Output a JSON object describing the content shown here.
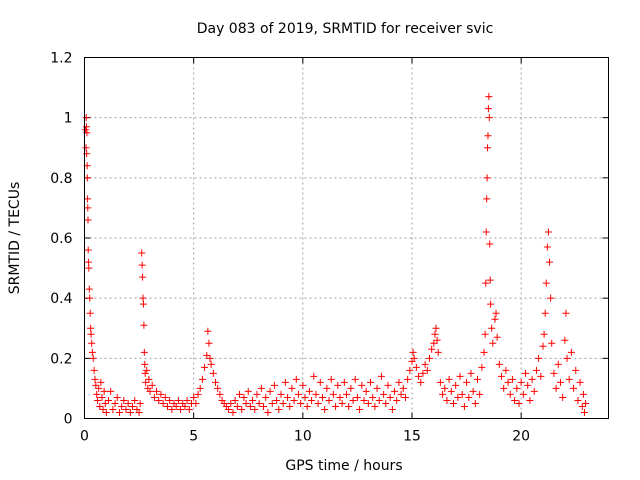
{
  "chart_data": {
    "type": "scatter",
    "title": "Day 083 of 2019, SRMTID for receiver svic",
    "xlabel": "GPS time / hours",
    "ylabel": "SRMTID / TECUs",
    "xlim": [
      0,
      24
    ],
    "ylim": [
      0,
      1.2
    ],
    "xticks": [
      0,
      5,
      10,
      15,
      20
    ],
    "yticks": [
      0,
      0.2,
      0.4,
      0.6,
      0.8,
      1,
      1.2
    ],
    "xtick_labels": [
      "0",
      "5",
      "10",
      "15",
      "20"
    ],
    "ytick_labels": [
      "0",
      "0.2",
      "0.4",
      "0.6",
      "0.8",
      "1",
      "1.2"
    ],
    "grid": true,
    "marker": "+",
    "color": "#ff0000",
    "series": [
      {
        "name": "SRMTID",
        "points": [
          [
            0.05,
            0.96
          ],
          [
            0.07,
            0.9
          ],
          [
            0.08,
            1.0
          ],
          [
            0.09,
            0.97
          ],
          [
            0.1,
            0.88
          ],
          [
            0.11,
            0.95
          ],
          [
            0.12,
            0.84
          ],
          [
            0.13,
            0.8
          ],
          [
            0.14,
            0.73
          ],
          [
            0.15,
            0.7
          ],
          [
            0.16,
            0.66
          ],
          [
            0.17,
            0.56
          ],
          [
            0.18,
            0.52
          ],
          [
            0.2,
            0.5
          ],
          [
            0.22,
            0.43
          ],
          [
            0.24,
            0.4
          ],
          [
            0.26,
            0.35
          ],
          [
            0.28,
            0.3
          ],
          [
            0.3,
            0.28
          ],
          [
            0.33,
            0.25
          ],
          [
            0.36,
            0.22
          ],
          [
            0.4,
            0.2
          ],
          [
            0.44,
            0.16
          ],
          [
            0.48,
            0.13
          ],
          [
            0.52,
            0.11
          ],
          [
            0.56,
            0.08
          ],
          [
            0.6,
            0.06
          ],
          [
            0.65,
            0.1
          ],
          [
            0.7,
            0.04
          ],
          [
            0.75,
            0.12
          ],
          [
            0.8,
            0.07
          ],
          [
            0.85,
            0.03
          ],
          [
            0.9,
            0.09
          ],
          [
            0.95,
            0.05
          ],
          [
            1.0,
            0.02
          ],
          [
            1.1,
            0.06
          ],
          [
            1.2,
            0.09
          ],
          [
            1.3,
            0.03
          ],
          [
            1.4,
            0.05
          ],
          [
            1.5,
            0.07
          ],
          [
            1.6,
            0.02
          ],
          [
            1.7,
            0.04
          ],
          [
            1.8,
            0.06
          ],
          [
            1.9,
            0.03
          ],
          [
            2.0,
            0.05
          ],
          [
            2.1,
            0.02
          ],
          [
            2.2,
            0.04
          ],
          [
            2.3,
            0.06
          ],
          [
            2.4,
            0.03
          ],
          [
            2.5,
            0.02
          ],
          [
            2.55,
            0.05
          ],
          [
            2.62,
            0.55
          ],
          [
            2.64,
            0.51
          ],
          [
            2.66,
            0.47
          ],
          [
            2.68,
            0.4
          ],
          [
            2.7,
            0.38
          ],
          [
            2.72,
            0.31
          ],
          [
            2.74,
            0.22
          ],
          [
            2.76,
            0.18
          ],
          [
            2.78,
            0.15
          ],
          [
            2.8,
            0.12
          ],
          [
            2.85,
            0.16
          ],
          [
            2.9,
            0.1
          ],
          [
            2.95,
            0.13
          ],
          [
            3.0,
            0.09
          ],
          [
            3.1,
            0.11
          ],
          [
            3.2,
            0.07
          ],
          [
            3.3,
            0.09
          ],
          [
            3.4,
            0.06
          ],
          [
            3.5,
            0.08
          ],
          [
            3.6,
            0.05
          ],
          [
            3.7,
            0.07
          ],
          [
            3.8,
            0.04
          ],
          [
            3.9,
            0.06
          ],
          [
            4.0,
            0.03
          ],
          [
            4.1,
            0.05
          ],
          [
            4.2,
            0.04
          ],
          [
            4.3,
            0.06
          ],
          [
            4.4,
            0.03
          ],
          [
            4.5,
            0.05
          ],
          [
            4.6,
            0.04
          ],
          [
            4.7,
            0.06
          ],
          [
            4.8,
            0.03
          ],
          [
            4.9,
            0.05
          ],
          [
            5.0,
            0.07
          ],
          [
            5.1,
            0.05
          ],
          [
            5.2,
            0.08
          ],
          [
            5.3,
            0.1
          ],
          [
            5.4,
            0.13
          ],
          [
            5.5,
            0.17
          ],
          [
            5.6,
            0.21
          ],
          [
            5.65,
            0.29
          ],
          [
            5.7,
            0.25
          ],
          [
            5.75,
            0.2
          ],
          [
            5.8,
            0.18
          ],
          [
            5.9,
            0.15
          ],
          [
            6.0,
            0.12
          ],
          [
            6.1,
            0.1
          ],
          [
            6.2,
            0.08
          ],
          [
            6.3,
            0.06
          ],
          [
            6.4,
            0.05
          ],
          [
            6.5,
            0.04
          ],
          [
            6.6,
            0.03
          ],
          [
            6.7,
            0.05
          ],
          [
            6.8,
            0.02
          ],
          [
            6.9,
            0.06
          ],
          [
            7.0,
            0.04
          ],
          [
            7.1,
            0.08
          ],
          [
            7.2,
            0.03
          ],
          [
            7.3,
            0.07
          ],
          [
            7.4,
            0.05
          ],
          [
            7.5,
            0.09
          ],
          [
            7.6,
            0.04
          ],
          [
            7.7,
            0.06
          ],
          [
            7.8,
            0.03
          ],
          [
            7.9,
            0.08
          ],
          [
            8.0,
            0.05
          ],
          [
            8.1,
            0.1
          ],
          [
            8.2,
            0.04
          ],
          [
            8.3,
            0.07
          ],
          [
            8.4,
            0.02
          ],
          [
            8.5,
            0.09
          ],
          [
            8.6,
            0.05
          ],
          [
            8.7,
            0.11
          ],
          [
            8.8,
            0.06
          ],
          [
            8.9,
            0.03
          ],
          [
            9.0,
            0.08
          ],
          [
            9.1,
            0.05
          ],
          [
            9.2,
            0.12
          ],
          [
            9.3,
            0.07
          ],
          [
            9.4,
            0.04
          ],
          [
            9.5,
            0.1
          ],
          [
            9.6,
            0.06
          ],
          [
            9.7,
            0.13
          ],
          [
            9.8,
            0.08
          ],
          [
            9.9,
            0.05
          ],
          [
            10.0,
            0.11
          ],
          [
            10.1,
            0.07
          ],
          [
            10.2,
            0.04
          ],
          [
            10.3,
            0.09
          ],
          [
            10.4,
            0.06
          ],
          [
            10.5,
            0.14
          ],
          [
            10.6,
            0.08
          ],
          [
            10.7,
            0.05
          ],
          [
            10.8,
            0.12
          ],
          [
            10.9,
            0.07
          ],
          [
            11.0,
            0.03
          ],
          [
            11.1,
            0.1
          ],
          [
            11.2,
            0.06
          ],
          [
            11.3,
            0.13
          ],
          [
            11.4,
            0.08
          ],
          [
            11.5,
            0.04
          ],
          [
            11.6,
            0.11
          ],
          [
            11.7,
            0.07
          ],
          [
            11.8,
            0.05
          ],
          [
            11.9,
            0.12
          ],
          [
            12.0,
            0.08
          ],
          [
            12.1,
            0.04
          ],
          [
            12.2,
            0.1
          ],
          [
            12.3,
            0.06
          ],
          [
            12.4,
            0.13
          ],
          [
            12.5,
            0.07
          ],
          [
            12.6,
            0.03
          ],
          [
            12.7,
            0.11
          ],
          [
            12.8,
            0.06
          ],
          [
            12.9,
            0.09
          ],
          [
            13.0,
            0.05
          ],
          [
            13.1,
            0.12
          ],
          [
            13.2,
            0.07
          ],
          [
            13.3,
            0.04
          ],
          [
            13.4,
            0.1
          ],
          [
            13.5,
            0.06
          ],
          [
            13.6,
            0.14
          ],
          [
            13.7,
            0.08
          ],
          [
            13.8,
            0.05
          ],
          [
            13.9,
            0.11
          ],
          [
            14.0,
            0.07
          ],
          [
            14.1,
            0.03
          ],
          [
            14.2,
            0.09
          ],
          [
            14.3,
            0.06
          ],
          [
            14.4,
            0.12
          ],
          [
            14.5,
            0.08
          ],
          [
            14.6,
            0.1
          ],
          [
            14.7,
            0.07
          ],
          [
            14.8,
            0.13
          ],
          [
            14.9,
            0.16
          ],
          [
            15.0,
            0.19
          ],
          [
            15.05,
            0.22
          ],
          [
            15.1,
            0.2
          ],
          [
            15.2,
            0.17
          ],
          [
            15.3,
            0.14
          ],
          [
            15.4,
            0.12
          ],
          [
            15.5,
            0.15
          ],
          [
            15.6,
            0.18
          ],
          [
            15.7,
            0.16
          ],
          [
            15.8,
            0.2
          ],
          [
            15.9,
            0.23
          ],
          [
            16.0,
            0.25
          ],
          [
            16.05,
            0.28
          ],
          [
            16.1,
            0.3
          ],
          [
            16.15,
            0.26
          ],
          [
            16.2,
            0.22
          ],
          [
            16.3,
            0.12
          ],
          [
            16.4,
            0.08
          ],
          [
            16.5,
            0.1
          ],
          [
            16.6,
            0.06
          ],
          [
            16.7,
            0.13
          ],
          [
            16.8,
            0.09
          ],
          [
            16.9,
            0.05
          ],
          [
            17.0,
            0.11
          ],
          [
            17.1,
            0.07
          ],
          [
            17.2,
            0.14
          ],
          [
            17.3,
            0.08
          ],
          [
            17.4,
            0.04
          ],
          [
            17.5,
            0.12
          ],
          [
            17.6,
            0.07
          ],
          [
            17.7,
            0.15
          ],
          [
            17.8,
            0.09
          ],
          [
            17.9,
            0.05
          ],
          [
            18.0,
            0.13
          ],
          [
            18.1,
            0.08
          ],
          [
            18.2,
            0.17
          ],
          [
            18.3,
            0.22
          ],
          [
            18.35,
            0.28
          ],
          [
            18.38,
            0.45
          ],
          [
            18.4,
            0.62
          ],
          [
            18.42,
            0.73
          ],
          [
            18.44,
            0.8
          ],
          [
            18.46,
            0.9
          ],
          [
            18.48,
            0.94
          ],
          [
            18.5,
            1.03
          ],
          [
            18.52,
            1.07
          ],
          [
            18.54,
            1.0
          ],
          [
            18.56,
            0.58
          ],
          [
            18.58,
            0.46
          ],
          [
            18.6,
            0.38
          ],
          [
            18.65,
            0.3
          ],
          [
            18.7,
            0.25
          ],
          [
            18.8,
            0.33
          ],
          [
            18.85,
            0.35
          ],
          [
            18.9,
            0.27
          ],
          [
            19.0,
            0.18
          ],
          [
            19.1,
            0.14
          ],
          [
            19.2,
            0.1
          ],
          [
            19.3,
            0.16
          ],
          [
            19.4,
            0.12
          ],
          [
            19.5,
            0.08
          ],
          [
            19.6,
            0.13
          ],
          [
            19.7,
            0.06
          ],
          [
            19.8,
            0.1
          ],
          [
            19.9,
            0.05
          ],
          [
            20.0,
            0.12
          ],
          [
            20.1,
            0.08
          ],
          [
            20.2,
            0.15
          ],
          [
            20.3,
            0.11
          ],
          [
            20.4,
            0.06
          ],
          [
            20.5,
            0.13
          ],
          [
            20.6,
            0.09
          ],
          [
            20.7,
            0.16
          ],
          [
            20.8,
            0.2
          ],
          [
            20.9,
            0.14
          ],
          [
            21.0,
            0.24
          ],
          [
            21.05,
            0.28
          ],
          [
            21.1,
            0.35
          ],
          [
            21.15,
            0.45
          ],
          [
            21.2,
            0.57
          ],
          [
            21.25,
            0.62
          ],
          [
            21.3,
            0.52
          ],
          [
            21.35,
            0.4
          ],
          [
            21.4,
            0.25
          ],
          [
            21.5,
            0.15
          ],
          [
            21.6,
            0.1
          ],
          [
            21.7,
            0.18
          ],
          [
            21.8,
            0.12
          ],
          [
            21.9,
            0.07
          ],
          [
            22.0,
            0.26
          ],
          [
            22.05,
            0.35
          ],
          [
            22.1,
            0.2
          ],
          [
            22.2,
            0.13
          ],
          [
            22.3,
            0.22
          ],
          [
            22.4,
            0.1
          ],
          [
            22.5,
            0.16
          ],
          [
            22.6,
            0.06
          ],
          [
            22.7,
            0.12
          ],
          [
            22.8,
            0.04
          ],
          [
            22.85,
            0.08
          ],
          [
            22.9,
            0.02
          ],
          [
            22.95,
            0.05
          ]
        ]
      }
    ]
  }
}
